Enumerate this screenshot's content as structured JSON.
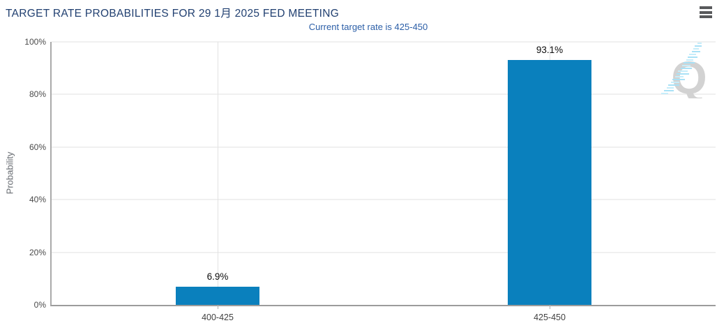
{
  "header": {
    "title": "TARGET RATE PROBABILITIES FOR 29 1月 2025 FED MEETING",
    "menu_icon": "hamburger-icon"
  },
  "subtitle": "Current target rate is 425-450",
  "chart_data": {
    "type": "bar",
    "title": "TARGET RATE PROBABILITIES FOR 29 1月 2025 FED MEETING",
    "subtitle": "Current target rate is 425-450",
    "categories": [
      "400-425",
      "425-450"
    ],
    "values": [
      6.9,
      93.1
    ],
    "value_labels": [
      "6.9%",
      "93.1%"
    ],
    "xlabel": "",
    "ylabel": "Probability",
    "ylim": [
      0,
      100
    ],
    "yticks": [
      0,
      20,
      40,
      60,
      80,
      100
    ],
    "ytick_labels": [
      "0%",
      "20%",
      "40%",
      "60%",
      "80%",
      "100%"
    ],
    "grid": true,
    "legend": "none",
    "bar_color": "#0a80bd"
  },
  "colors": {
    "title": "#203f70",
    "subtitle": "#2b5ea7",
    "bar": "#0a80bd",
    "gridline": "#e2e2e2",
    "axis_line": "#9c9c9c",
    "tick_label": "#4a4a4a",
    "category_label": "#414141",
    "value_label": "#0d0d0d",
    "menu_icon": "#58595b",
    "watermark_letter": "#d2d2d2",
    "watermark_streak": "#a9e1f6"
  },
  "watermark": {
    "letter": "Q"
  }
}
